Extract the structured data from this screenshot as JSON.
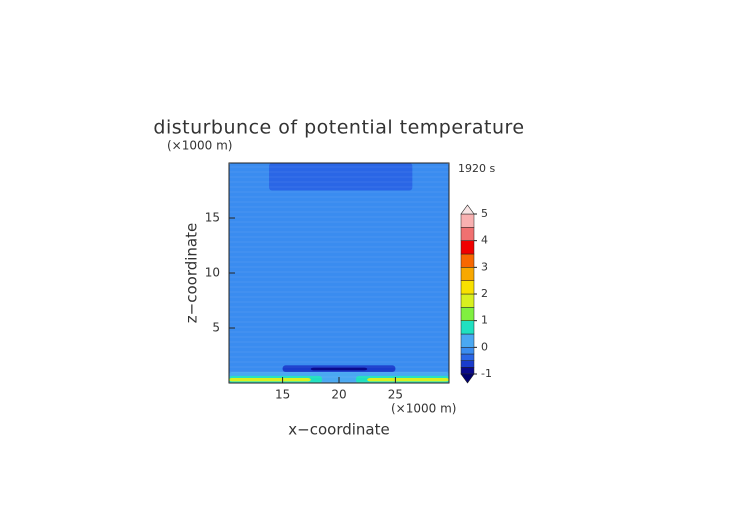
{
  "chart_data": {
    "type": "contour",
    "title": "disturbunce of potential temperature",
    "time_label": "1920 s",
    "x_label": "x−coordinate",
    "y_label": "z−coordinate",
    "x_unit": "(×1000 m)",
    "y_unit": "(×1000 m)",
    "xlim": [
      10.25,
      29.75
    ],
    "ylim": [
      0,
      20
    ],
    "xticks": [
      15,
      20,
      25
    ],
    "yticks": [
      5,
      10,
      15
    ],
    "regions": [
      {
        "value": -0.1,
        "x": [
          10.25,
          29.75
        ],
        "y": [
          0,
          20
        ]
      },
      {
        "value": -0.35,
        "x": [
          13.8,
          26.5
        ],
        "y": [
          17.5,
          20
        ]
      },
      {
        "value": -0.2,
        "x": [
          10.25,
          29.75
        ],
        "y": [
          1.5,
          3.3
        ]
      },
      {
        "value": -0.6,
        "x": [
          15,
          25
        ],
        "y": [
          1.0,
          1.6
        ]
      },
      {
        "value": -0.85,
        "x": [
          17.5,
          22.5
        ],
        "y": [
          1.15,
          1.4
        ]
      },
      {
        "value": 0.3,
        "x": [
          10.25,
          29.75
        ],
        "y": [
          0,
          1.0
        ]
      },
      {
        "value": 0.7,
        "x": [
          10.25,
          18.5
        ],
        "y": [
          0,
          0.65
        ]
      },
      {
        "value": 0.7,
        "x": [
          21.5,
          29.75
        ],
        "y": [
          0,
          0.65
        ]
      },
      {
        "value": 1.6,
        "x": [
          10.25,
          17.5
        ],
        "y": [
          0.15,
          0.45
        ]
      },
      {
        "value": 1.6,
        "x": [
          22.5,
          29.75
        ],
        "y": [
          0.15,
          0.45
        ]
      }
    ],
    "colorbar": {
      "levels": [
        -1,
        -0.75,
        -0.5,
        -0.25,
        0,
        0.5,
        1,
        1.5,
        2,
        2.5,
        3,
        3.5,
        4,
        4.5,
        5
      ],
      "colors": [
        "#0a0a8c",
        "#1a3ccc",
        "#2a66e6",
        "#3a8cf0",
        "#4aa8f2",
        "#20e0c0",
        "#80f040",
        "#d8f020",
        "#f8e000",
        "#f8a800",
        "#f86800",
        "#f00000",
        "#f07070",
        "#f8b0b0"
      ],
      "extend_colors": [
        "#000070",
        "#f8e4e4"
      ],
      "ticks": [
        -1,
        0,
        1,
        2,
        3,
        4,
        5
      ]
    }
  }
}
